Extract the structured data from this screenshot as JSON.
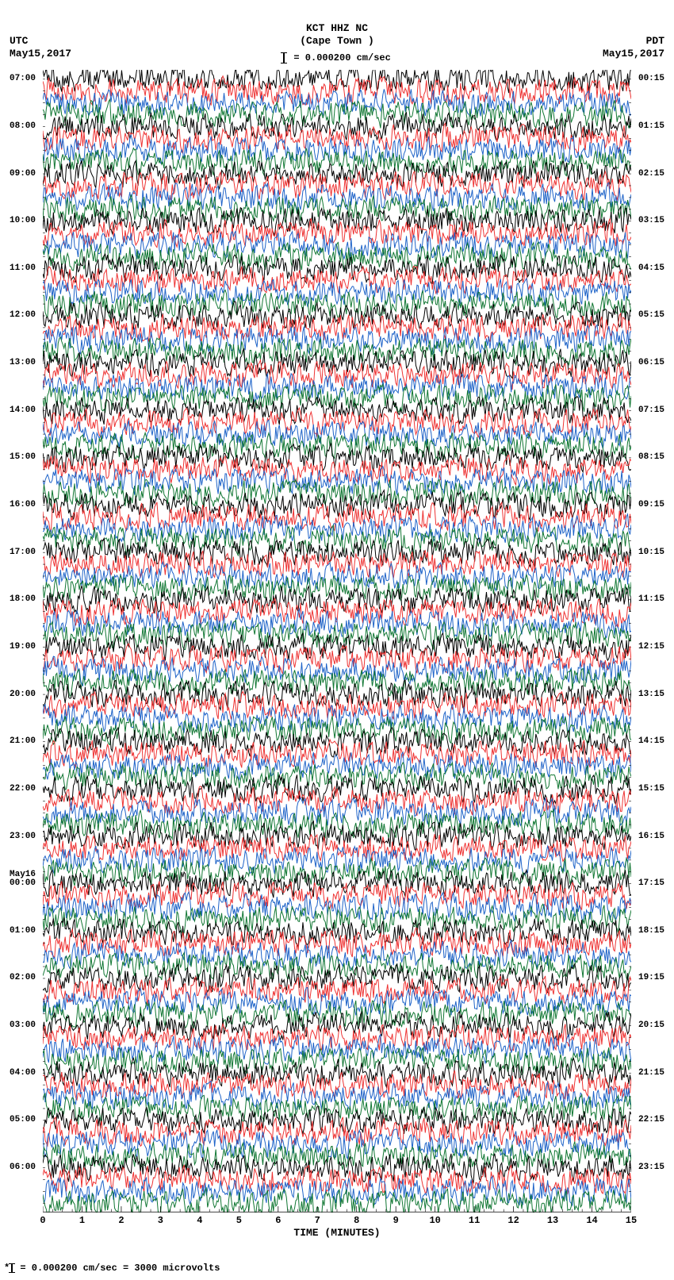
{
  "seismogram": {
    "title": "KCT HHZ NC",
    "subtitle": "(Cape Town )",
    "scale_text": " = 0.000200 cm/sec",
    "tz_left": "UTC",
    "tz_right": "PDT",
    "date_left": "May15,2017",
    "date_right": "May15,2017",
    "x_axis_label": "TIME (MINUTES)",
    "footer_star": "*",
    "footer_text": " = 0.000200 cm/sec =   3000 microvolts",
    "plot": {
      "type": "helicorder",
      "n_traces": 96,
      "hours": 24,
      "traces_per_hour": 4,
      "x_minutes": 15,
      "x_ticks_major": [
        0,
        1,
        2,
        3,
        4,
        5,
        6,
        7,
        8,
        9,
        10,
        11,
        12,
        13,
        14,
        15
      ],
      "x_minor_per_major": 4,
      "colors": [
        "#000000",
        "#ee3333",
        "#1e63c8",
        "#117733"
      ],
      "background_color": "#ffffff",
      "trace_linewidth": 0.5,
      "trace_amplitude_rel": 1.6,
      "title_fontsize": 13,
      "label_fontsize": 12,
      "tick_fontsize": 11,
      "left_labels": [
        {
          "idx": 0,
          "text": "07:00"
        },
        {
          "idx": 4,
          "text": "08:00"
        },
        {
          "idx": 8,
          "text": "09:00"
        },
        {
          "idx": 12,
          "text": "10:00"
        },
        {
          "idx": 16,
          "text": "11:00"
        },
        {
          "idx": 20,
          "text": "12:00"
        },
        {
          "idx": 24,
          "text": "13:00"
        },
        {
          "idx": 28,
          "text": "14:00"
        },
        {
          "idx": 32,
          "text": "15:00"
        },
        {
          "idx": 36,
          "text": "16:00"
        },
        {
          "idx": 40,
          "text": "17:00"
        },
        {
          "idx": 44,
          "text": "18:00"
        },
        {
          "idx": 48,
          "text": "19:00"
        },
        {
          "idx": 52,
          "text": "20:00"
        },
        {
          "idx": 56,
          "text": "21:00"
        },
        {
          "idx": 60,
          "text": "22:00"
        },
        {
          "idx": 64,
          "text": "23:00"
        },
        {
          "idx": 68,
          "text": "May16\n00:00"
        },
        {
          "idx": 72,
          "text": "01:00"
        },
        {
          "idx": 76,
          "text": "02:00"
        },
        {
          "idx": 80,
          "text": "03:00"
        },
        {
          "idx": 84,
          "text": "04:00"
        },
        {
          "idx": 88,
          "text": "05:00"
        },
        {
          "idx": 92,
          "text": "06:00"
        }
      ],
      "right_labels": [
        {
          "idx": 0,
          "text": "00:15"
        },
        {
          "idx": 4,
          "text": "01:15"
        },
        {
          "idx": 8,
          "text": "02:15"
        },
        {
          "idx": 12,
          "text": "03:15"
        },
        {
          "idx": 16,
          "text": "04:15"
        },
        {
          "idx": 20,
          "text": "05:15"
        },
        {
          "idx": 24,
          "text": "06:15"
        },
        {
          "idx": 28,
          "text": "07:15"
        },
        {
          "idx": 32,
          "text": "08:15"
        },
        {
          "idx": 36,
          "text": "09:15"
        },
        {
          "idx": 40,
          "text": "10:15"
        },
        {
          "idx": 44,
          "text": "11:15"
        },
        {
          "idx": 48,
          "text": "12:15"
        },
        {
          "idx": 52,
          "text": "13:15"
        },
        {
          "idx": 56,
          "text": "14:15"
        },
        {
          "idx": 60,
          "text": "15:15"
        },
        {
          "idx": 64,
          "text": "16:15"
        },
        {
          "idx": 68,
          "text": "17:15"
        },
        {
          "idx": 72,
          "text": "18:15"
        },
        {
          "idx": 76,
          "text": "19:15"
        },
        {
          "idx": 80,
          "text": "20:15"
        },
        {
          "idx": 84,
          "text": "21:15"
        },
        {
          "idx": 88,
          "text": "22:15"
        },
        {
          "idx": 92,
          "text": "23:15"
        }
      ]
    }
  }
}
